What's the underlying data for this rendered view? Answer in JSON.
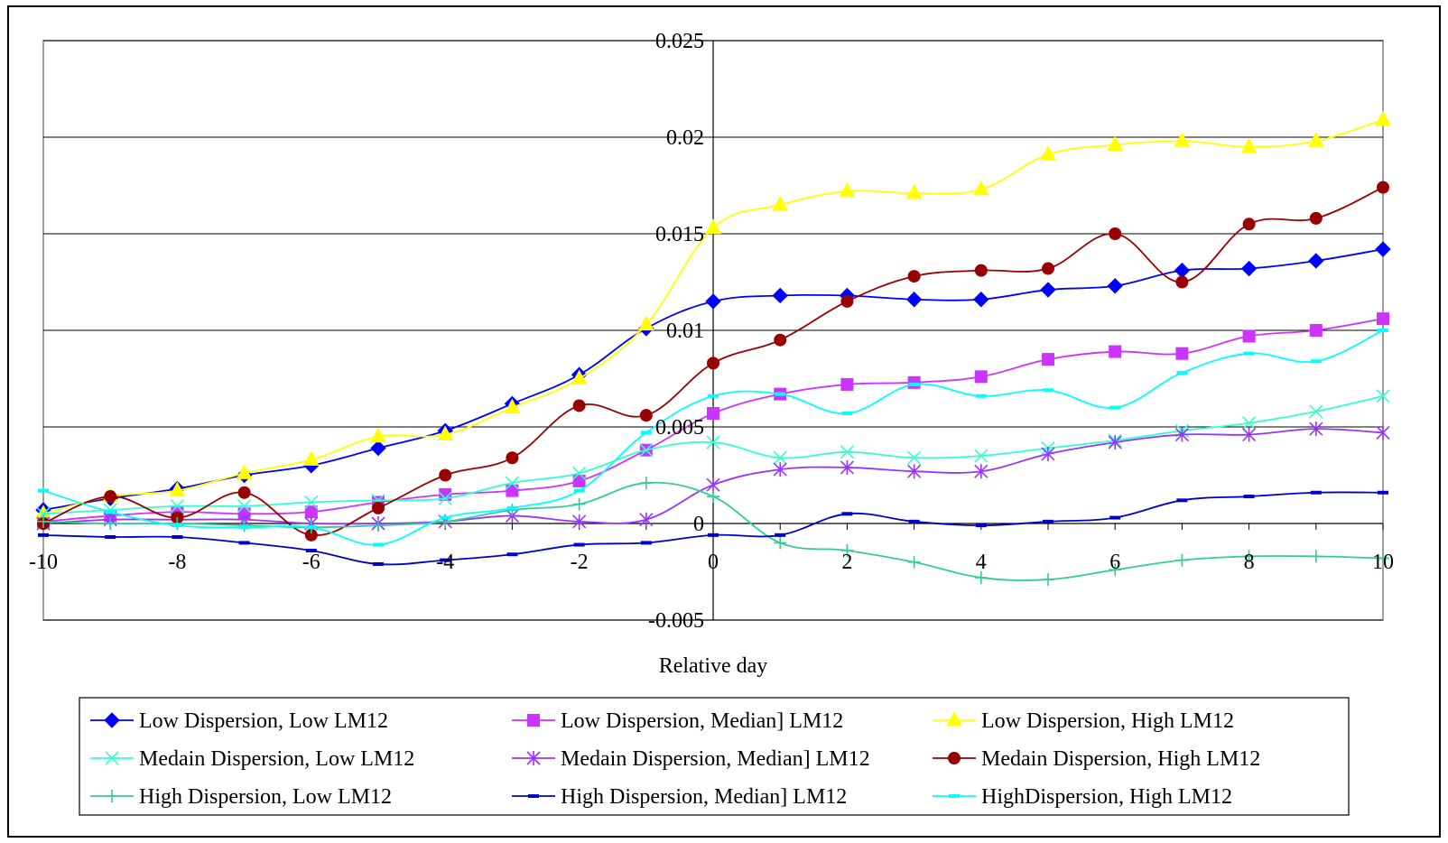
{
  "chart_data": {
    "type": "line",
    "title": "",
    "xlabel": "Relative day",
    "ylabel": "",
    "xlim": [
      -10,
      10
    ],
    "ylim": [
      -0.005,
      0.025
    ],
    "x_ticks": [
      -10,
      -8,
      -6,
      -4,
      -2,
      0,
      2,
      4,
      6,
      8,
      10
    ],
    "y_ticks": [
      -0.005,
      0,
      0.005,
      0.01,
      0.015,
      0.02,
      0.025
    ],
    "x_tick_labels": [
      "-10",
      "-8",
      "-6",
      "-4",
      "-2",
      "0",
      "2",
      "4",
      "6",
      "8",
      "10"
    ],
    "y_tick_labels": [
      "-0.005",
      "0",
      "0.005",
      "0.01",
      "0.015",
      "0.02",
      "0.025"
    ],
    "grid": "horizontal",
    "legend_placement": "bottom",
    "x": [
      -10,
      -9,
      -8,
      -7,
      -6,
      -5,
      -4,
      -3,
      -2,
      -1,
      0,
      1,
      2,
      3,
      4,
      5,
      6,
      7,
      8,
      9,
      10
    ],
    "series": [
      {
        "name": "Low Dispersion, Low LM12",
        "color": "#0000FF",
        "marker": "diamond",
        "values": [
          0.0007,
          0.0013,
          0.0018,
          0.0025,
          0.003,
          0.0039,
          0.0048,
          0.0062,
          0.0077,
          0.0101,
          0.0115,
          0.0118,
          0.0118,
          0.0116,
          0.0116,
          0.0121,
          0.0123,
          0.0131,
          0.0132,
          0.0136,
          0.0142
        ]
      },
      {
        "name": "Low Dispersion, Median] LM12",
        "color": "#CC33FF",
        "marker": "square",
        "values": [
          0.0001,
          0.0004,
          0.0006,
          0.0005,
          0.0006,
          0.0011,
          0.0015,
          0.0017,
          0.0022,
          0.0038,
          0.0057,
          0.0067,
          0.0072,
          0.0073,
          0.0076,
          0.0085,
          0.0089,
          0.0088,
          0.0097,
          0.01,
          0.0106
        ]
      },
      {
        "name": "Low Dispersion, High LM12",
        "color": "#FFFF00",
        "marker": "triangle",
        "values": [
          0.0005,
          0.0014,
          0.0017,
          0.0026,
          0.0033,
          0.0045,
          0.0046,
          0.006,
          0.0075,
          0.0103,
          0.0153,
          0.0165,
          0.0172,
          0.0171,
          0.0173,
          0.0191,
          0.0196,
          0.0198,
          0.0195,
          0.0198,
          0.0209
        ]
      },
      {
        "name": "Medain Dispersion, Low LM12",
        "color": "#33FFCC",
        "marker": "x",
        "values": [
          0.0005,
          0.0007,
          0.0009,
          0.0009,
          0.0011,
          0.0012,
          0.0013,
          0.0021,
          0.0026,
          0.0038,
          0.0042,
          0.0034,
          0.0037,
          0.0034,
          0.0035,
          0.0039,
          0.0043,
          0.0048,
          0.0052,
          0.0058,
          0.0066
        ]
      },
      {
        "name": "Medain Dispersion, Median] LM12",
        "color": "#9933FF",
        "marker": "star",
        "values": [
          0.0,
          0.0002,
          0.0002,
          0.0002,
          0.0,
          0.0,
          0.0001,
          0.0004,
          0.0001,
          0.0002,
          0.002,
          0.0028,
          0.0029,
          0.0027,
          0.0027,
          0.0036,
          0.0042,
          0.0046,
          0.0046,
          0.0049,
          0.0047
        ]
      },
      {
        "name": "Medain Dispersion, High LM12",
        "color": "#990000",
        "marker": "circle",
        "values": [
          0.0,
          0.0014,
          0.0003,
          0.0016,
          -0.0006,
          0.0008,
          0.0025,
          0.0034,
          0.0061,
          0.0056,
          0.0083,
          0.0095,
          0.0115,
          0.0128,
          0.0131,
          0.0132,
          0.015,
          0.0125,
          0.0155,
          0.0158,
          0.0174
        ]
      },
      {
        "name": "High Dispersion, Low LM12",
        "color": "#33CC99",
        "marker": "plus",
        "values": [
          0.0001,
          0.0,
          0.0,
          -0.0001,
          -0.0002,
          -0.0001,
          0.0001,
          0.0007,
          0.001,
          0.0021,
          0.0014,
          -0.001,
          -0.0014,
          -0.002,
          -0.0028,
          -0.0029,
          -0.0024,
          -0.0019,
          -0.0017,
          -0.0017,
          -0.0018
        ]
      },
      {
        "name": "High Dispersion, Median] LM12",
        "color": "#0000CC",
        "marker": "dash",
        "values": [
          -0.0006,
          -0.0007,
          -0.0007,
          -0.001,
          -0.0014,
          -0.0021,
          -0.0019,
          -0.0016,
          -0.0011,
          -0.001,
          -0.0006,
          -0.0006,
          0.0005,
          0.0001,
          -0.0001,
          0.0001,
          0.0003,
          0.0012,
          0.0014,
          0.0016,
          0.0016
        ]
      },
      {
        "name": "HighDispersion, High LM12",
        "color": "#00FFFF",
        "marker": "dash",
        "values": [
          0.0017,
          0.0006,
          -0.0001,
          -0.0002,
          -0.0002,
          -0.0011,
          0.0003,
          0.0008,
          0.0017,
          0.0047,
          0.0066,
          0.0067,
          0.0057,
          0.0072,
          0.0066,
          0.0069,
          0.006,
          0.0078,
          0.0088,
          0.0084,
          0.01
        ]
      }
    ]
  }
}
